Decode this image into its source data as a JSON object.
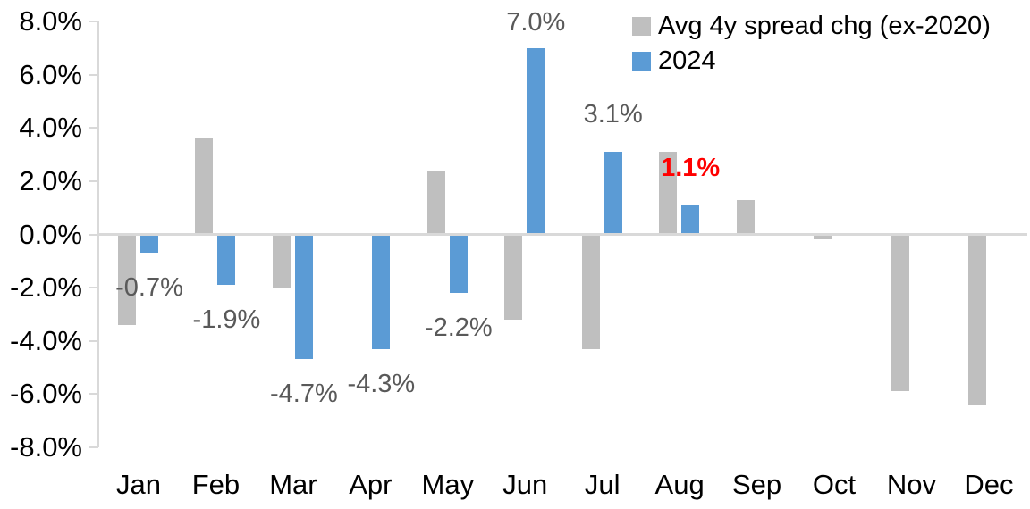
{
  "chart_data": {
    "type": "bar",
    "title": "",
    "categories": [
      "Jan",
      "Feb",
      "Mar",
      "Apr",
      "May",
      "Jun",
      "Jul",
      "Aug",
      "Sep",
      "Oct",
      "Nov",
      "Dec"
    ],
    "series": [
      {
        "name": "Avg 4y spread chg (ex-2020)",
        "color": "#BFBFBF",
        "values": [
          -3.4,
          3.6,
          -2.0,
          0.0,
          2.4,
          -3.2,
          -4.3,
          3.1,
          1.3,
          -0.2,
          -5.9,
          -6.4
        ]
      },
      {
        "name": "2024",
        "color": "#5B9BD5",
        "values": [
          -0.7,
          -1.9,
          -4.7,
          -4.3,
          -2.2,
          7.0,
          3.1,
          1.1,
          null,
          null,
          null,
          null
        ]
      }
    ],
    "data_labels": [
      {
        "series": "2024",
        "category": "Jan",
        "text": "-0.7%",
        "color": "#595959",
        "bold": false
      },
      {
        "series": "2024",
        "category": "Feb",
        "text": "-1.9%",
        "color": "#595959",
        "bold": false
      },
      {
        "series": "2024",
        "category": "Mar",
        "text": "-4.7%",
        "color": "#595959",
        "bold": false
      },
      {
        "series": "2024",
        "category": "Apr",
        "text": "-4.3%",
        "color": "#595959",
        "bold": false
      },
      {
        "series": "2024",
        "category": "May",
        "text": "-2.2%",
        "color": "#595959",
        "bold": false
      },
      {
        "series": "2024",
        "category": "Jun",
        "text": "7.0%",
        "color": "#595959",
        "bold": false
      },
      {
        "series": "2024",
        "category": "Jul",
        "text": "3.1%",
        "color": "#595959",
        "bold": false
      },
      {
        "series": "2024",
        "category": "Aug",
        "text": "1.1%",
        "color": "#FF0000",
        "bold": true
      }
    ],
    "y_axis": {
      "min": -8,
      "max": 8,
      "step": 2,
      "tick_labels": [
        "8.0%",
        "6.0%",
        "4.0%",
        "2.0%",
        "0.0%",
        "-2.0%",
        "-4.0%",
        "-6.0%",
        "-8.0%"
      ]
    },
    "legend": {
      "position": "top-right",
      "entries": [
        {
          "label": "Avg 4y spread chg (ex-2020)",
          "color": "#BFBFBF"
        },
        {
          "label": "2024",
          "color": "#5B9BD5"
        }
      ]
    },
    "grid": false,
    "axis_color": "#D9D9D9",
    "text_color": "#000000",
    "data_label_color": "#595959"
  }
}
